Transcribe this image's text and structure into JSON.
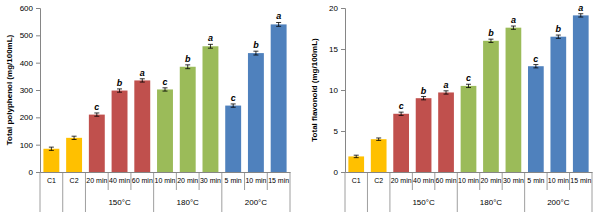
{
  "chart_data": [
    {
      "type": "bar",
      "y_label": "Total polyphenol (mg/100mL)",
      "categories": [
        "C1",
        "C2",
        "20 min",
        "40 min",
        "60 min",
        "10 min",
        "20 min",
        "30 min",
        "5 min",
        "10 min",
        "15 min"
      ],
      "group_labels": [
        null,
        null,
        "150°C",
        "150°C",
        "150°C",
        "180°C",
        "180°C",
        "180°C",
        "200°C",
        "200°C",
        "200°C"
      ],
      "values": [
        85,
        125,
        210,
        298,
        335,
        302,
        385,
        460,
        243,
        435,
        540
      ],
      "errors": [
        6,
        6,
        6,
        6,
        6,
        6,
        7,
        7,
        6,
        7,
        7
      ],
      "letters": [
        null,
        null,
        "c",
        "b",
        "a",
        "c",
        "b",
        "a",
        "c",
        "b",
        "a"
      ],
      "colors": [
        "#ffc000",
        "#ffc000",
        "#c0504d",
        "#c0504d",
        "#c0504d",
        "#9bbb59",
        "#9bbb59",
        "#9bbb59",
        "#4f81bd",
        "#4f81bd",
        "#4f81bd"
      ],
      "ylim": [
        0,
        600
      ],
      "yticks": [
        0,
        100,
        200,
        300,
        400,
        500,
        600
      ],
      "grid": false
    },
    {
      "type": "bar",
      "y_label": "Total flavonoid (mg/100mL)",
      "categories": [
        "C1",
        "C2",
        "20 min",
        "40 min",
        "60 min",
        "10 min",
        "20 min",
        "30 min",
        "5 min",
        "10 min",
        "15 min"
      ],
      "group_labels": [
        null,
        null,
        "150°C",
        "150°C",
        "150°C",
        "180°C",
        "180°C",
        "180°C",
        "200°C",
        "200°C",
        "200°C"
      ],
      "values": [
        1.9,
        4.0,
        7.1,
        9.0,
        9.7,
        10.5,
        16.0,
        17.6,
        12.9,
        16.5,
        19.1
      ],
      "errors": [
        0.15,
        0.15,
        0.2,
        0.2,
        0.2,
        0.2,
        0.2,
        0.2,
        0.2,
        0.2,
        0.2
      ],
      "letters": [
        null,
        null,
        "c",
        "b",
        "a",
        "c",
        "b",
        "a",
        "c",
        "b",
        "a"
      ],
      "colors": [
        "#ffc000",
        "#ffc000",
        "#c0504d",
        "#c0504d",
        "#c0504d",
        "#9bbb59",
        "#9bbb59",
        "#9bbb59",
        "#4f81bd",
        "#4f81bd",
        "#4f81bd"
      ],
      "ylim": [
        0,
        20
      ],
      "yticks": [
        0,
        5,
        10,
        15,
        20
      ],
      "grid": false
    }
  ]
}
